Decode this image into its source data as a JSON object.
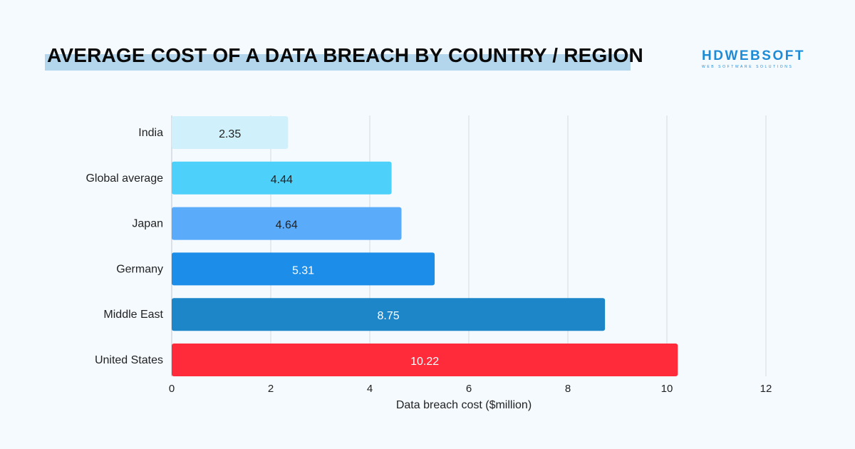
{
  "header": {
    "title": "AVERAGE COST OF A DATA BREACH BY COUNTRY / REGION"
  },
  "logo": {
    "name": "HDWEBSOFT",
    "tagline": "WEB SOFTWARE SOLUTIONS",
    "color": "#1e8bd6"
  },
  "chart_data": {
    "type": "bar",
    "orientation": "horizontal",
    "title": "AVERAGE COST OF A DATA BREACH BY COUNTRY / REGION",
    "categories": [
      "India",
      "Global average",
      "Japan",
      "Germany",
      "Middle East",
      "United States"
    ],
    "values": [
      2.35,
      4.44,
      4.64,
      5.31,
      8.75,
      10.22
    ],
    "value_labels": [
      "2.35",
      "4.44",
      "4.64",
      "5.31",
      "8.75",
      "10.22"
    ],
    "colors": [
      "#d0f1fc",
      "#4dd0fa",
      "#5aabfa",
      "#1c8de8",
      "#1d86c8",
      "#ff2a3a"
    ],
    "label_colors": [
      "#222222",
      "#222222",
      "#222222",
      "#ffffff",
      "#ffffff",
      "#ffffff"
    ],
    "xlabel": "Data breach cost ($million)",
    "ylabel": "",
    "xlim": [
      0,
      12
    ],
    "xticks": [
      "0",
      "2",
      "4",
      "6",
      "8",
      "10",
      "12"
    ],
    "grid": true,
    "legend": "none"
  }
}
